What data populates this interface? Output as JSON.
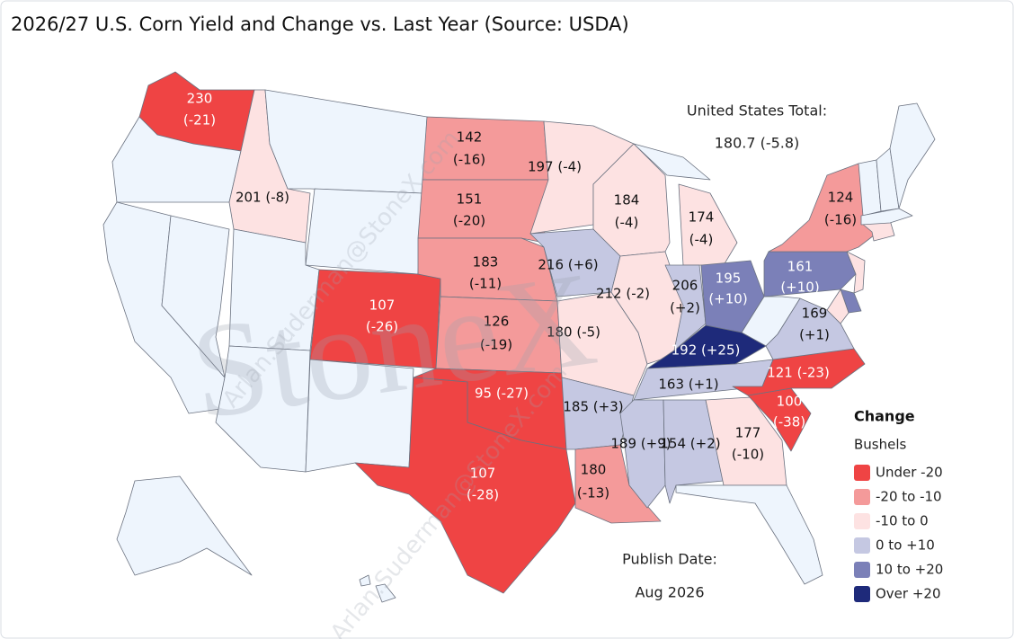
{
  "title": "2026/27 U.S. Corn Yield and Change vs. Last Year (Source: USDA)",
  "total": {
    "label": "United States Total:",
    "value": "180.7 (-5.8)"
  },
  "publish": {
    "label": "Publish Date:",
    "value": "Aug 2026"
  },
  "watermarks": [
    "StoneX",
    "Arlan.Suderman@StoneX.com"
  ],
  "legend": {
    "title": "Change",
    "subtitle": "Bushels",
    "items": [
      {
        "label": "Under -20",
        "color": "#ef4444"
      },
      {
        "label": "-20 to -10",
        "color": "#f49a9a"
      },
      {
        "label": "-10 to 0",
        "color": "#fde2e2"
      },
      {
        "label": "0 to +10",
        "color": "#c5c8e2"
      },
      {
        "label": "10 to +20",
        "color": "#7b80b8"
      },
      {
        "label": "Over +20",
        "color": "#1e2a7a"
      }
    ]
  },
  "states": [
    {
      "lines": [
        "230",
        "(-21)"
      ],
      "color": "#ef4444"
    },
    {
      "lines": [
        "201 (-8)"
      ],
      "color": "#fde2e2"
    },
    {
      "lines": [
        "142",
        "(-16)"
      ],
      "color": "#f49a9a"
    },
    {
      "lines": [
        "151",
        "(-20)"
      ],
      "color": "#f49a9a"
    },
    {
      "lines": [
        "183",
        "(-11)"
      ],
      "color": "#f49a9a"
    },
    {
      "lines": [
        "107",
        "(-26)"
      ],
      "color": "#ef4444"
    },
    {
      "lines": [
        "126",
        "(-19)"
      ],
      "color": "#f49a9a"
    },
    {
      "lines": [
        "95 (-27)"
      ],
      "color": "#ef4444"
    },
    {
      "lines": [
        "107",
        "(-28)"
      ],
      "color": "#ef4444"
    },
    {
      "lines": [
        "197 (-4)"
      ],
      "color": "#fde2e2"
    },
    {
      "lines": [
        "216 (+6)"
      ],
      "color": "#c5c8e2"
    },
    {
      "lines": [
        "180 (-5)"
      ],
      "color": "#fde2e2"
    },
    {
      "lines": [
        "185 (+3)"
      ],
      "color": "#c5c8e2"
    },
    {
      "lines": [
        "180",
        "(-13)"
      ],
      "color": "#f49a9a"
    },
    {
      "lines": [
        "184",
        "(-4)"
      ],
      "color": "#fde2e2"
    },
    {
      "lines": [
        "212 (-2)"
      ],
      "color": "#fde2e2"
    },
    {
      "lines": [
        "174",
        "(-4)"
      ],
      "color": "#fde2e2"
    },
    {
      "lines": [
        "206",
        "(+2)"
      ],
      "color": "#c5c8e2"
    },
    {
      "lines": [
        "195",
        "(+10)"
      ],
      "color": "#7b80b8"
    },
    {
      "lines": [
        "192 (+25)"
      ],
      "color": "#1e2a7a"
    },
    {
      "lines": [
        "163 (+1)"
      ],
      "color": "#c5c8e2"
    },
    {
      "lines": [
        "189 (+9)"
      ],
      "color": "#c5c8e2"
    },
    {
      "lines": [
        "154 (+2)"
      ],
      "color": "#c5c8e2"
    },
    {
      "lines": [
        "177",
        "(-10)"
      ],
      "color": "#fde2e2"
    },
    {
      "lines": [
        "100",
        "(-38)"
      ],
      "color": "#ef4444"
    },
    {
      "lines": [
        "121 (-23)"
      ],
      "color": "#ef4444"
    },
    {
      "lines": [
        "169",
        "(+1)"
      ],
      "color": "#c5c8e2"
    },
    {
      "lines": [
        "161",
        "(+10)"
      ],
      "color": "#7b80b8"
    },
    {
      "lines": [
        "124",
        "(-16)"
      ],
      "color": "#f49a9a"
    }
  ]
}
